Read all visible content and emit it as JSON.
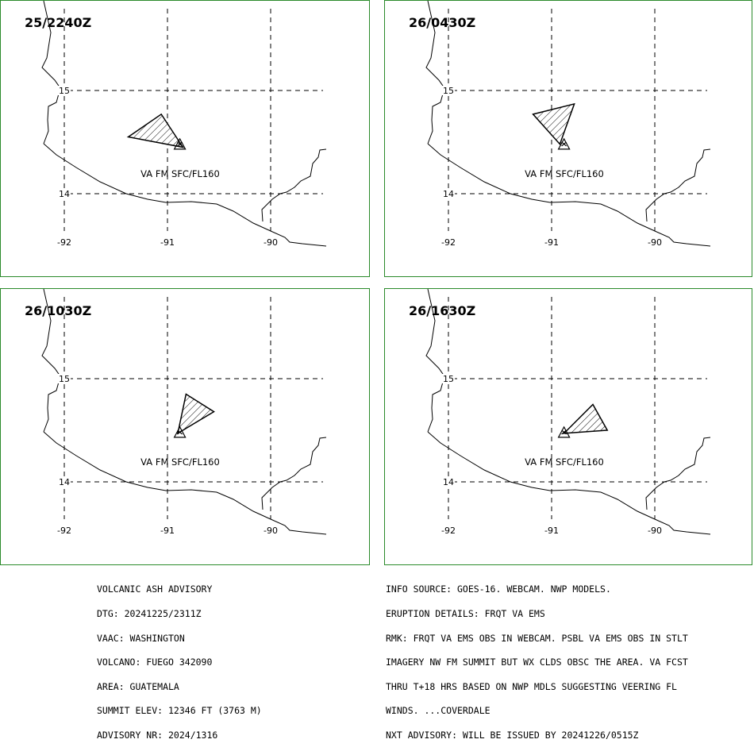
{
  "panels": [
    {
      "time": "25/2240Z",
      "plume": [
        [
          -91.38,
          14.55
        ],
        [
          -91.06,
          14.77
        ],
        [
          -90.85,
          14.45
        ]
      ]
    },
    {
      "time": "26/0430Z",
      "plume": [
        [
          -91.18,
          14.77
        ],
        [
          -90.78,
          14.87
        ],
        [
          -90.92,
          14.48
        ]
      ]
    },
    {
      "time": "26/1030Z",
      "plume": [
        [
          -90.82,
          14.85
        ],
        [
          -90.55,
          14.68
        ],
        [
          -90.9,
          14.47
        ]
      ]
    },
    {
      "time": "26/1630Z",
      "plume": [
        [
          -90.88,
          14.47
        ],
        [
          -90.6,
          14.75
        ],
        [
          -90.46,
          14.5
        ]
      ]
    }
  ],
  "map": {
    "gridlines": {
      "lon": [
        -92,
        -91,
        -90
      ],
      "lat": [
        15,
        14
      ]
    },
    "lon_labels": [
      "-92",
      "-91",
      "-90"
    ],
    "lat_labels": [
      "15",
      "14"
    ],
    "volcano_symbol": "triangle-volcano-icon",
    "volcano_position": {
      "lon": -90.88,
      "lat": 14.47
    },
    "ash_label": "VA FM SFC/FL160",
    "colors": {
      "frame": "#2a8a2a",
      "ink": "#000000"
    }
  },
  "advisory_left": [
    "VOLCANIC ASH ADVISORY",
    "DTG: 20241225/2311Z",
    "VAAC: WASHINGTON",
    "VOLCANO: FUEGO 342090",
    "AREA: GUATEMALA",
    "SUMMIT ELEV: 12346 FT (3763 M)",
    "ADVISORY NR: 2024/1316"
  ],
  "advisory_right": [
    "INFO SOURCE: GOES-16. WEBCAM. NWP MODELS.",
    "ERUPTION DETAILS: FRQT VA EMS",
    "RMK: FRQT VA EMS OBS IN WEBCAM. PSBL VA EMS OBS IN STLT",
    "IMAGERY NW FM SUMMIT BUT WX CLDS OBSC THE AREA. VA FCST",
    "THRU T+18 HRS BASED ON NWP MDLS SUGGESTING VEERING FL",
    "WINDS. ...COVERDALE",
    "NXT ADVISORY: WILL BE ISSUED BY 20241226/0515Z"
  ]
}
